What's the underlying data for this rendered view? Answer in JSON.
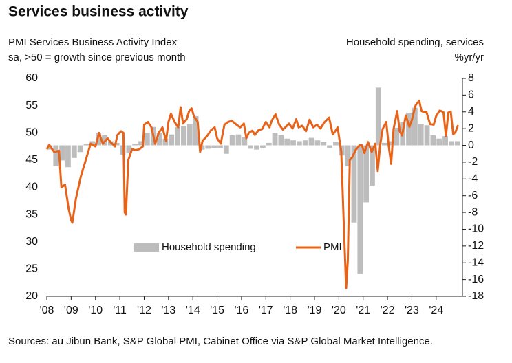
{
  "chart_data": {
    "type": "combo",
    "title": "Services business activity",
    "left_axis_label": [
      "PMI Services Business Activity Index",
      "sa, >50 = growth since previous month"
    ],
    "right_axis_label": [
      "Household spending, services",
      "%yr/yr"
    ],
    "source": "Sources: au Jibun Bank, S&P Global PMI, Cabinet Office via S&P Global Market Intelligence.",
    "xlim": [
      2008,
      2025.08
    ],
    "xticks": [
      {
        "value": 2008,
        "label": "'08"
      },
      {
        "value": 2009,
        "label": "'09"
      },
      {
        "value": 2010,
        "label": "'10"
      },
      {
        "value": 2011,
        "label": "'11"
      },
      {
        "value": 2012,
        "label": "'12"
      },
      {
        "value": 2013,
        "label": "'13"
      },
      {
        "value": 2014,
        "label": "'14"
      },
      {
        "value": 2015,
        "label": "'15"
      },
      {
        "value": 2016,
        "label": "'16"
      },
      {
        "value": 2017,
        "label": "'17"
      },
      {
        "value": 2018,
        "label": "'18"
      },
      {
        "value": 2019,
        "label": "'19"
      },
      {
        "value": 2020,
        "label": "'20"
      },
      {
        "value": 2021,
        "label": "'21"
      },
      {
        "value": 2022,
        "label": "'22"
      },
      {
        "value": 2023,
        "label": "'23"
      },
      {
        "value": 2024,
        "label": "'24"
      }
    ],
    "ylim": [
      20,
      60
    ],
    "yticks": [
      20,
      25,
      30,
      35,
      40,
      45,
      50,
      55,
      60
    ],
    "y2lim": [
      -18,
      8
    ],
    "y2ticks": [
      -18,
      -16,
      -14,
      -12,
      -10,
      -8,
      -6,
      -4,
      -2,
      0,
      2,
      4,
      6,
      8
    ],
    "series": [
      {
        "name": "Household spending",
        "type": "bar",
        "axis": "y2",
        "color": "#bdbdbd",
        "x": [
          2008.125,
          2008.375,
          2008.625,
          2008.875,
          2009.125,
          2009.375,
          2009.625,
          2009.875,
          2010.125,
          2010.375,
          2010.625,
          2010.875,
          2011.125,
          2011.375,
          2011.625,
          2011.875,
          2012.125,
          2012.375,
          2012.625,
          2012.875,
          2013.125,
          2013.375,
          2013.625,
          2013.875,
          2014.125,
          2014.375,
          2014.625,
          2014.875,
          2015.125,
          2015.375,
          2015.625,
          2015.875,
          2016.125,
          2016.375,
          2016.625,
          2016.875,
          2017.125,
          2017.375,
          2017.625,
          2017.875,
          2018.125,
          2018.375,
          2018.625,
          2018.875,
          2019.125,
          2019.375,
          2019.625,
          2019.875,
          2020.125,
          2020.375,
          2020.625,
          2020.875,
          2021.125,
          2021.375,
          2021.625,
          2021.875,
          2022.125,
          2022.375,
          2022.625,
          2022.875,
          2023.125,
          2023.375,
          2023.625,
          2023.875,
          2024.125,
          2024.375,
          2024.625,
          2024.875
        ],
        "values": [
          -0.5,
          -2.5,
          -1.8,
          -2.6,
          -1.5,
          -0.8,
          0.2,
          0.5,
          1.5,
          1.2,
          0.5,
          0.3,
          -1.1,
          -0.9,
          0.2,
          0.5,
          1.5,
          2.2,
          1.5,
          0.8,
          1.3,
          2.2,
          2.3,
          2.5,
          3.5,
          -0.5,
          -0.4,
          -0.3,
          -0.3,
          -1.0,
          1.2,
          1.3,
          1.0,
          -0.4,
          -0.5,
          -0.3,
          0.3,
          1.5,
          1.2,
          0.8,
          0.6,
          0.5,
          0.6,
          0.9,
          0.6,
          0.4,
          -0.3,
          0.4,
          -1.2,
          -2.5,
          -9.2,
          -15.3,
          -6.8,
          -4.8,
          6.9,
          0.3,
          0.5,
          2.1,
          2.8,
          3.9,
          4.5,
          2.5,
          2.4,
          1.2,
          0.8,
          1.1,
          0.5,
          0.5
        ]
      },
      {
        "name": "PMI",
        "type": "line",
        "color": "#e8631a",
        "x": [
          2008.0,
          2008.1,
          2008.3,
          2008.5,
          2008.6,
          2008.75,
          2008.9,
          2009.0,
          2009.05,
          2009.2,
          2009.4,
          2009.6,
          2009.8,
          2010.0,
          2010.15,
          2010.3,
          2010.5,
          2010.6,
          2010.8,
          2010.9,
          2011.05,
          2011.15,
          2011.2,
          2011.25,
          2011.35,
          2011.5,
          2011.65,
          2011.8,
          2011.95,
          2012.0,
          2012.15,
          2012.3,
          2012.45,
          2012.6,
          2012.75,
          2012.9,
          2013.0,
          2013.1,
          2013.25,
          2013.4,
          2013.5,
          2013.6,
          2013.75,
          2013.85,
          2013.95,
          2014.05,
          2014.2,
          2014.3,
          2014.4,
          2014.6,
          2014.75,
          2014.9,
          2015.0,
          2015.15,
          2015.3,
          2015.45,
          2015.6,
          2015.8,
          2015.95,
          2016.1,
          2016.2,
          2016.3,
          2016.45,
          2016.55,
          2016.7,
          2016.85,
          2017.0,
          2017.15,
          2017.25,
          2017.4,
          2017.55,
          2017.7,
          2017.85,
          2017.95,
          2018.1,
          2018.25,
          2018.35,
          2018.5,
          2018.65,
          2018.8,
          2018.95,
          2019.1,
          2019.25,
          2019.4,
          2019.6,
          2019.75,
          2019.85,
          2019.95,
          2020.1,
          2020.2,
          2020.3,
          2020.37,
          2020.45,
          2020.55,
          2020.7,
          2020.85,
          2020.95,
          2021.05,
          2021.2,
          2021.35,
          2021.5,
          2021.6,
          2021.7,
          2021.8,
          2021.95,
          2022.05,
          2022.15,
          2022.25,
          2022.4,
          2022.5,
          2022.6,
          2022.75,
          2022.9,
          2023.0,
          2023.15,
          2023.3,
          2023.4,
          2023.5,
          2023.6,
          2023.75,
          2023.9,
          2024.0,
          2024.15,
          2024.3,
          2024.4,
          2024.5,
          2024.6,
          2024.7,
          2024.8,
          2024.9
        ],
        "values": [
          47,
          47.8,
          46.5,
          46.7,
          40,
          40.5,
          36,
          34,
          33.5,
          38,
          42,
          45,
          48,
          47.5,
          50,
          48,
          49,
          48.4,
          47.5,
          49.6,
          50.3,
          50,
          35.4,
          35,
          45,
          47,
          46.8,
          47,
          47.5,
          51.5,
          52,
          51,
          48,
          50,
          51,
          48.5,
          52,
          53.5,
          52,
          51,
          54.7,
          51.7,
          52.5,
          54,
          54.5,
          53,
          52,
          46.5,
          48.5,
          49.5,
          50.5,
          51,
          49,
          48,
          51.5,
          52,
          52.2,
          51.5,
          51,
          51.7,
          49,
          50,
          50.4,
          49.6,
          50.5,
          50.7,
          52,
          51,
          52.3,
          53.4,
          51.5,
          50.6,
          51.2,
          51.7,
          50.8,
          52.5,
          51,
          51.3,
          50.3,
          52.4,
          51,
          51.5,
          50.8,
          51.9,
          52.8,
          49.7,
          50.3,
          51,
          46.5,
          33.8,
          21.5,
          26.5,
          45,
          45.5,
          46.9,
          47.7,
          47.7,
          46.3,
          48.3,
          46.5,
          48,
          43,
          47.8,
          50.7,
          52,
          47.5,
          44.3,
          50.7,
          54,
          50.3,
          49.5,
          53.2,
          51.1,
          52.3,
          55,
          55.9,
          54,
          53.8,
          53.8,
          51.6,
          51.5,
          53.1,
          54.1,
          53.8,
          49.4,
          53.7,
          53.9,
          49.7,
          50.2,
          51.4
        ]
      }
    ]
  }
}
